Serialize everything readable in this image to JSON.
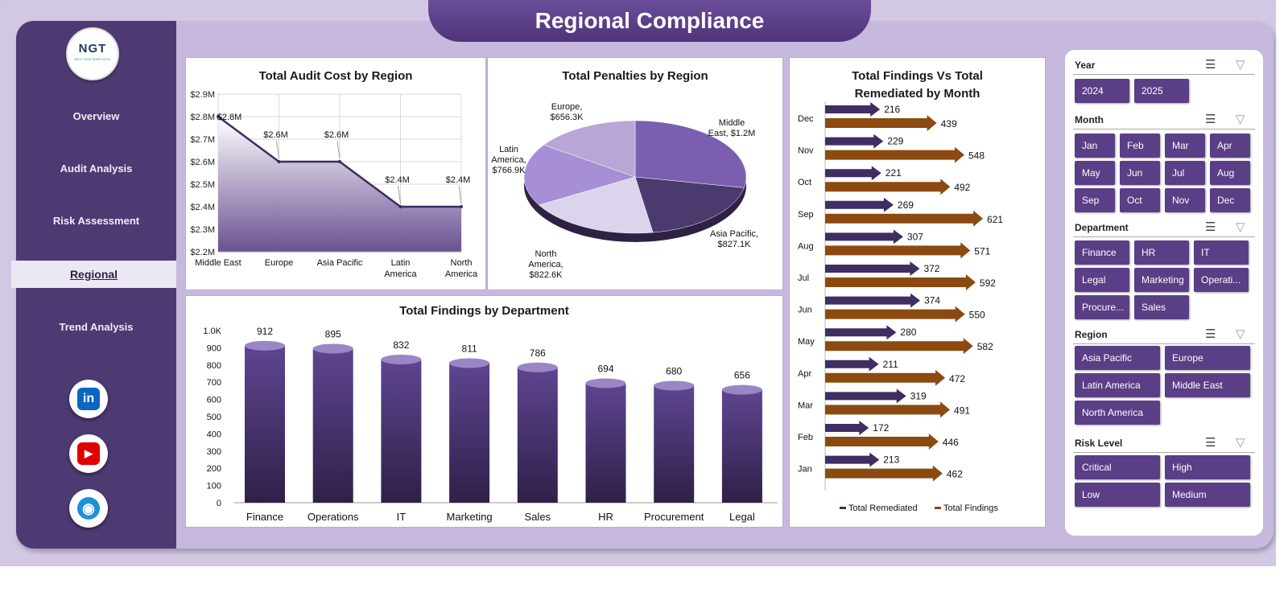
{
  "page": {
    "title": "Regional Compliance"
  },
  "logo": {
    "text": "NGT",
    "subtext": "NEXT GEN TEMPLATES"
  },
  "sidebar": {
    "items": [
      {
        "label": "Overview"
      },
      {
        "label": "Audit Analysis"
      },
      {
        "label": "Risk Assessment"
      },
      {
        "label": "Regional",
        "active": true
      },
      {
        "label": "Trend Analysis"
      }
    ],
    "social": [
      {
        "icon": "linkedin-icon",
        "glyph": "in",
        "color": "#0a66c2"
      },
      {
        "icon": "youtube-icon",
        "glyph": "▶",
        "color": "#e00000"
      },
      {
        "icon": "globe-icon",
        "glyph": "◉",
        "color": "#1d8fd6"
      }
    ]
  },
  "charts": {
    "audit_cost": {
      "title": "Total Audit Cost by Region",
      "chart_data": {
        "type": "area",
        "categories": [
          "Middle East",
          "Europe",
          "Asia Pacific",
          "Latin America",
          "North America"
        ],
        "values": [
          2.8,
          2.6,
          2.6,
          2.4,
          2.4
        ],
        "data_labels": [
          "$2.8M",
          "$2.6M",
          "$2.6M",
          "$2.4M",
          "$2.4M"
        ],
        "y_ticks": [
          "$2.9M",
          "$2.8M",
          "$2.7M",
          "$2.6M",
          "$2.5M",
          "$2.4M",
          "$2.3M",
          "$2.2M"
        ],
        "ylim": [
          2.2,
          2.9
        ],
        "grid": true
      }
    },
    "penalties": {
      "title": "Total Penalties by Region",
      "chart_data": {
        "type": "pie",
        "slices": [
          {
            "name": "Middle East",
            "value": 1200000,
            "label": "Middle East, $1.2M",
            "color": "#7a5fb0"
          },
          {
            "name": "Asia Pacific",
            "value": 827100,
            "label": "Asia Pacific, $827.1K",
            "color": "#4a3a6e"
          },
          {
            "name": "North America",
            "value": 822600,
            "label": "North America, $822.6K",
            "color": "#dcd3ec"
          },
          {
            "name": "Latin America",
            "value": 766900,
            "label": "Latin America, $766.9K",
            "color": "#a68fd4"
          },
          {
            "name": "Europe",
            "value": 656300,
            "label": "Europe, $656.3K",
            "color": "#b8a6d6"
          }
        ]
      }
    },
    "findings_dept": {
      "title": "Total Findings by Department",
      "chart_data": {
        "type": "bar",
        "categories": [
          "Finance",
          "Operations",
          "IT",
          "Marketing",
          "Sales",
          "HR",
          "Procurement",
          "Legal"
        ],
        "values": [
          912,
          895,
          832,
          811,
          786,
          694,
          680,
          656
        ],
        "y_ticks": [
          "1.0K",
          "900",
          "800",
          "700",
          "600",
          "500",
          "400",
          "300",
          "200",
          "100",
          "0"
        ],
        "ylim": [
          0,
          1000
        ]
      }
    },
    "findings_month": {
      "title": "Total Findings Vs Total Remediated by Month",
      "chart_data": {
        "type": "bar",
        "categories": [
          "Dec",
          "Nov",
          "Oct",
          "Sep",
          "Aug",
          "Jul",
          "Jun",
          "May",
          "Apr",
          "Mar",
          "Feb",
          "Jan"
        ],
        "series": [
          {
            "name": "Total Remediated",
            "values": [
              216,
              229,
              221,
              269,
              307,
              372,
              374,
              280,
              211,
              319,
              172,
              213
            ],
            "color": "#3f2d63"
          },
          {
            "name": "Total Findings",
            "values": [
              439,
              548,
              492,
              621,
              571,
              592,
              550,
              582,
              472,
              491,
              446,
              462
            ],
            "color": "#8b4a10"
          }
        ],
        "xlim": [
          0,
          700
        ],
        "legend": "bottom"
      }
    }
  },
  "filters": [
    {
      "title": "Year",
      "options": [
        "2024",
        "2025"
      ]
    },
    {
      "title": "Month",
      "options": [
        "Jan",
        "Feb",
        "Mar",
        "Apr",
        "May",
        "Jun",
        "Jul",
        "Aug",
        "Sep",
        "Oct",
        "Nov",
        "Dec"
      ]
    },
    {
      "title": "Department",
      "options": [
        "Finance",
        "HR",
        "IT",
        "Legal",
        "Marketing",
        "Operati...",
        "Procure...",
        "Sales"
      ]
    },
    {
      "title": "Region",
      "options": [
        "Asia Pacific",
        "Europe",
        "Latin America",
        "Middle East",
        "North America"
      ]
    },
    {
      "title": "Risk Level",
      "options": [
        "Critical",
        "High",
        "Low",
        "Medium"
      ]
    }
  ]
}
